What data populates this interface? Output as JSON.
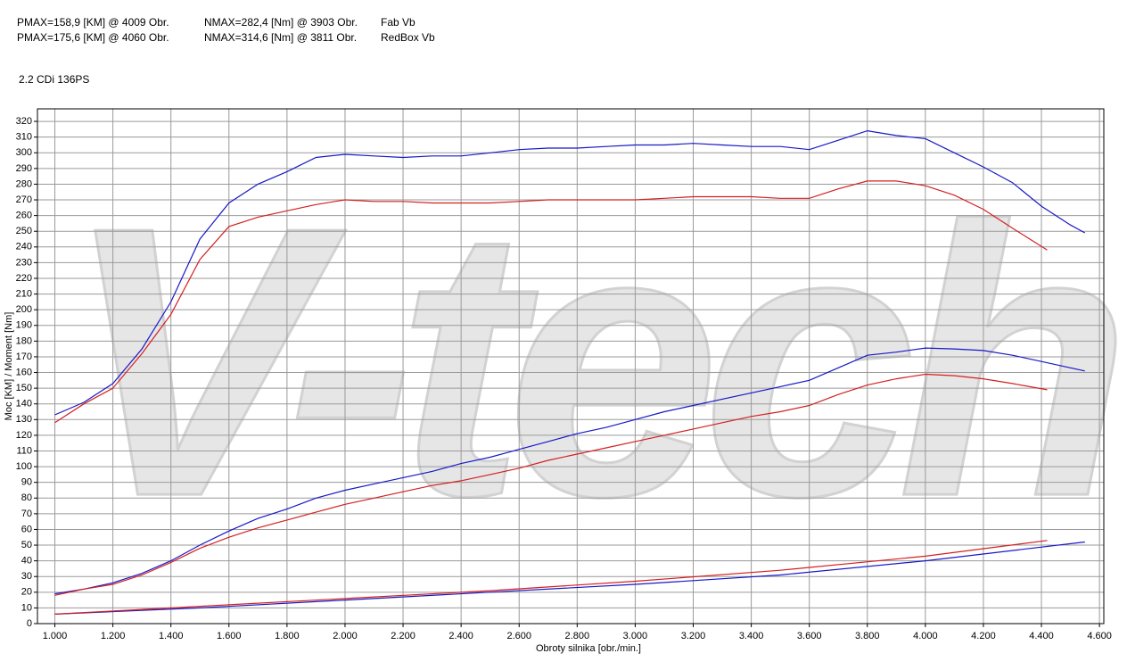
{
  "header": {
    "rows": [
      [
        "PMAX=158,9 [KM] @ 4009 Obr.",
        "NMAX=282,4 [Nm] @ 3903 Obr.",
        "Fab Vb"
      ],
      [
        "PMAX=175,6 [KM] @ 4060 Obr.",
        "NMAX=314,6 [Nm] @ 3811 Obr.",
        "RedBox Vb"
      ]
    ],
    "subtitle": "2.2 CDi 136PS"
  },
  "chart_data": {
    "type": "line",
    "watermark": "V-tech",
    "x_label": "Obroty silnika [obr./min.]",
    "y_label": "Moc [KM] / Moment [Nm]",
    "xlim": [
      940,
      4615
    ],
    "ylim": [
      0,
      328
    ],
    "grid": true,
    "xticks": [
      {
        "value": 1000,
        "label": "1.000"
      },
      {
        "value": 1200,
        "label": "1.200"
      },
      {
        "value": 1400,
        "label": "1.400"
      },
      {
        "value": 1600,
        "label": "1.600"
      },
      {
        "value": 1800,
        "label": "1.800"
      },
      {
        "value": 2000,
        "label": "2.000"
      },
      {
        "value": 2200,
        "label": "2.200"
      },
      {
        "value": 2400,
        "label": "2.400"
      },
      {
        "value": 2600,
        "label": "2.600"
      },
      {
        "value": 2800,
        "label": "2.800"
      },
      {
        "value": 3000,
        "label": "3.000"
      },
      {
        "value": 3200,
        "label": "3.200"
      },
      {
        "value": 3400,
        "label": "3.400"
      },
      {
        "value": 3600,
        "label": "3.600"
      },
      {
        "value": 3800,
        "label": "3.800"
      },
      {
        "value": 4000,
        "label": "4.000"
      },
      {
        "value": 4200,
        "label": "4.200"
      },
      {
        "value": 4400,
        "label": "4.400"
      },
      {
        "value": 4600,
        "label": "4.600"
      }
    ],
    "yticks": [
      0,
      10,
      20,
      30,
      40,
      50,
      60,
      70,
      80,
      90,
      100,
      110,
      120,
      130,
      140,
      150,
      160,
      170,
      180,
      190,
      200,
      210,
      220,
      230,
      240,
      250,
      260,
      270,
      280,
      290,
      300,
      310,
      320
    ],
    "series": [
      {
        "color": "#1818c8",
        "x": [
          1000,
          1100,
          1200,
          1300,
          1400,
          1500,
          1600,
          1700,
          1800,
          1900,
          2000,
          2100,
          2200,
          2300,
          2400,
          2500,
          2600,
          2700,
          2800,
          2900,
          3000,
          3100,
          3200,
          3300,
          3400,
          3500,
          3600,
          3700,
          3800,
          3900,
          4000,
          4100,
          4200,
          4300,
          4400,
          4500,
          4550
        ],
        "values": [
          133,
          141,
          153,
          175,
          205,
          245,
          268,
          280,
          288,
          297,
          299,
          298,
          297,
          298,
          298,
          300,
          302,
          303,
          303,
          304,
          305,
          305,
          306,
          305,
          304,
          304,
          302,
          308,
          314,
          311,
          309,
          300,
          291,
          281,
          266,
          254,
          249
        ]
      },
      {
        "color": "#d42020",
        "x": [
          1000,
          1100,
          1200,
          1300,
          1400,
          1500,
          1600,
          1700,
          1800,
          1900,
          2000,
          2100,
          2200,
          2300,
          2400,
          2500,
          2600,
          2700,
          2800,
          2900,
          3000,
          3100,
          3200,
          3300,
          3400,
          3500,
          3600,
          3700,
          3800,
          3900,
          4000,
          4100,
          4200,
          4300,
          4420
        ],
        "values": [
          128,
          140,
          150,
          172,
          197,
          232,
          253,
          259,
          263,
          267,
          270,
          269,
          269,
          268,
          268,
          268,
          269,
          270,
          270,
          270,
          270,
          271,
          272,
          272,
          272,
          271,
          271,
          277,
          282,
          282,
          279,
          273,
          264,
          252,
          238
        ]
      },
      {
        "color": "#1818c8",
        "x": [
          1000,
          1100,
          1200,
          1300,
          1400,
          1500,
          1600,
          1700,
          1800,
          1900,
          2000,
          2100,
          2200,
          2300,
          2400,
          2500,
          2600,
          2700,
          2800,
          2900,
          3000,
          3100,
          3200,
          3300,
          3400,
          3500,
          3600,
          3700,
          3800,
          3900,
          4000,
          4100,
          4200,
          4300,
          4400,
          4500,
          4550
        ],
        "values": [
          19,
          22,
          26,
          32,
          40,
          50,
          59,
          67,
          73,
          80,
          85,
          89,
          93,
          97,
          102,
          106,
          111,
          116,
          121,
          125,
          130,
          135,
          139,
          143,
          147,
          151,
          155,
          163,
          171,
          173,
          175.6,
          175,
          174,
          171,
          167,
          163,
          161
        ]
      },
      {
        "color": "#d42020",
        "x": [
          1000,
          1100,
          1200,
          1300,
          1400,
          1500,
          1600,
          1700,
          1800,
          1900,
          2000,
          2100,
          2200,
          2300,
          2400,
          2500,
          2600,
          2700,
          2800,
          2900,
          3000,
          3100,
          3200,
          3300,
          3400,
          3500,
          3600,
          3700,
          3800,
          3900,
          4000,
          4100,
          4200,
          4300,
          4420
        ],
        "values": [
          18,
          22,
          25,
          31,
          39,
          48,
          55,
          61,
          66,
          71,
          76,
          80,
          84,
          88,
          91,
          95,
          99,
          104,
          108,
          112,
          116,
          120,
          124,
          128,
          132,
          135,
          139,
          146,
          152,
          156,
          158.9,
          158,
          156,
          153,
          149
        ]
      },
      {
        "color": "#1818c8",
        "x": [
          1000,
          1500,
          2000,
          2500,
          3000,
          3500,
          4000,
          4550
        ],
        "values": [
          6,
          10,
          15,
          20,
          25,
          31,
          40,
          52
        ]
      },
      {
        "color": "#d42020",
        "x": [
          1000,
          1500,
          2000,
          2500,
          3000,
          3500,
          4000,
          4420
        ],
        "values": [
          6,
          11,
          16,
          21,
          27,
          34,
          43,
          53
        ]
      }
    ]
  }
}
